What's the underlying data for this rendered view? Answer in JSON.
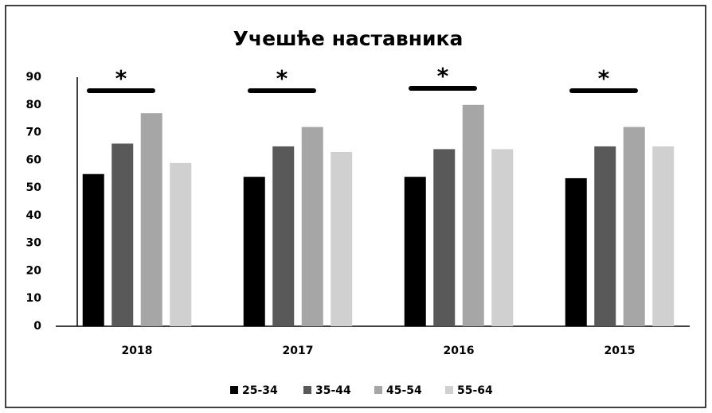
{
  "chart_data": {
    "type": "bar",
    "title": "Учешће наставника",
    "categories": [
      "2018",
      "2017",
      "2016",
      "2015"
    ],
    "series": [
      {
        "name": "25-34",
        "color": "#000000",
        "values": [
          55,
          54,
          54,
          53.5
        ]
      },
      {
        "name": "35-44",
        "color": "#595959",
        "values": [
          66,
          65,
          64,
          65
        ]
      },
      {
        "name": "45-54",
        "color": "#a6a6a6",
        "values": [
          77,
          72,
          80,
          72
        ]
      },
      {
        "name": "55-64",
        "color": "#d0d0d0",
        "values": [
          59,
          63,
          64,
          65
        ]
      }
    ],
    "annotations": [
      "*",
      "*",
      "*",
      "*"
    ],
    "ylim": [
      0,
      90
    ],
    "yticks": [
      0,
      10,
      20,
      30,
      40,
      50,
      60,
      70,
      80,
      90
    ],
    "legend": "bottom"
  }
}
